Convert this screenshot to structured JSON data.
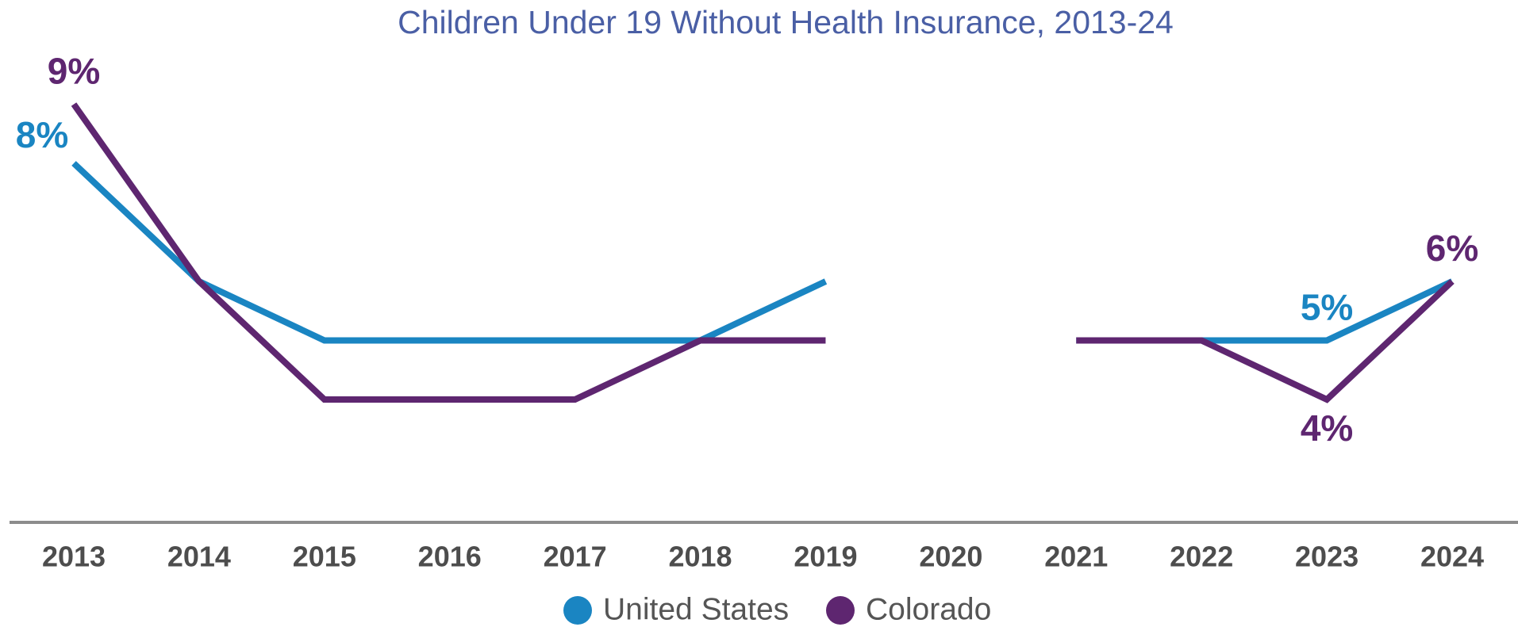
{
  "chart_data": {
    "type": "line",
    "title": "Children Under 19 Without Health Insurance, 2013-24",
    "x": [
      "2013",
      "2014",
      "2015",
      "2016",
      "2017",
      "2018",
      "2019",
      "2020",
      "2021",
      "2022",
      "2023",
      "2024"
    ],
    "ylim": [
      2,
      10
    ],
    "legend": "bottom",
    "series": [
      {
        "name": "United States",
        "color": "#1a85c2",
        "values": [
          8,
          6,
          5,
          5,
          5,
          5,
          6,
          null,
          5,
          5,
          5,
          6
        ],
        "value_labels": [
          "8%",
          null,
          null,
          null,
          null,
          null,
          null,
          null,
          null,
          null,
          "5%",
          null
        ]
      },
      {
        "name": "Colorado",
        "color": "#5e2670",
        "values": [
          9,
          6,
          4,
          4,
          4,
          5,
          5,
          null,
          5,
          5,
          4,
          6
        ],
        "value_labels": [
          "9%",
          null,
          null,
          null,
          null,
          null,
          null,
          null,
          null,
          null,
          "4%",
          "6%"
        ]
      }
    ]
  }
}
